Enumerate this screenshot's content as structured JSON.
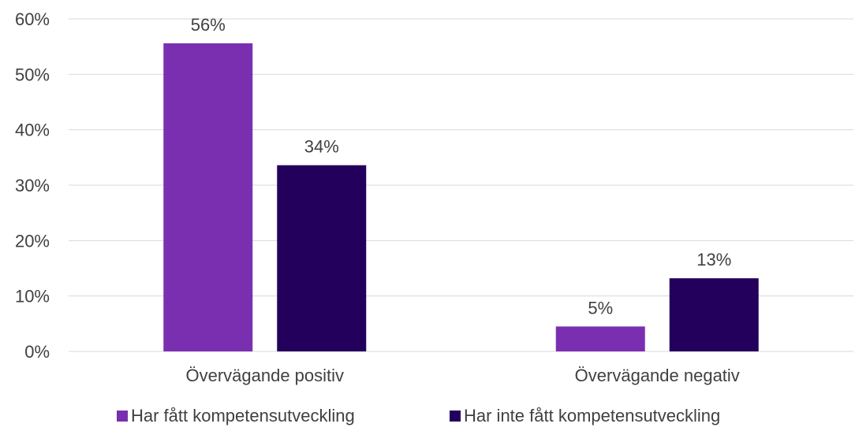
{
  "chart_data": {
    "type": "bar",
    "categories": [
      "Övervägande positiv",
      "Övervägande negativ"
    ],
    "series": [
      {
        "name": "Har fått kompetensutveckling",
        "values": [
          55.6,
          4.5
        ],
        "labels": [
          "56%",
          "5%"
        ],
        "color": "#7a2fb1"
      },
      {
        "name": "Har inte fått kompetensutveckling",
        "values": [
          33.6,
          13.2
        ],
        "labels": [
          "34%",
          "13%"
        ],
        "color": "#22005c"
      }
    ],
    "ylim": [
      0,
      60
    ],
    "yticks": [
      0,
      10,
      20,
      30,
      40,
      50,
      60
    ],
    "ytick_labels": [
      "0%",
      "10%",
      "20%",
      "30%",
      "40%",
      "50%",
      "60%"
    ],
    "grid": true,
    "legend": "bottom",
    "colors": {
      "grid": "#d9d9d9",
      "text": "#404040"
    }
  }
}
